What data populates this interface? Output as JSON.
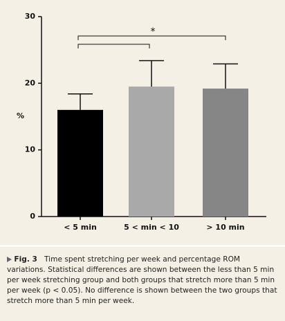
{
  "chart_data": {
    "type": "bar",
    "y_label": "%",
    "categories": [
      "< 5 min",
      "5 < min < 10",
      "> 10 min"
    ],
    "values": [
      16,
      19.5,
      19.2
    ],
    "errors": [
      2.4,
      3.9,
      3.7
    ],
    "colors": [
      "#000000",
      "#a9a9a9",
      "#868686"
    ],
    "ylim": [
      0,
      30
    ],
    "yticks": [
      0,
      10,
      20,
      30
    ],
    "annotations": [
      {
        "text": "*"
      }
    ],
    "caption": {
      "label": "Fig. 3",
      "text": "Time spent stretching per week and percentage ROM variations. Statistical differences are shown between the less than 5 min per week stretching group and both groups that stretch more than 5 min per week (p < 0.05). No difference is shown between the two groups that stretch more than 5 min per week."
    }
  }
}
